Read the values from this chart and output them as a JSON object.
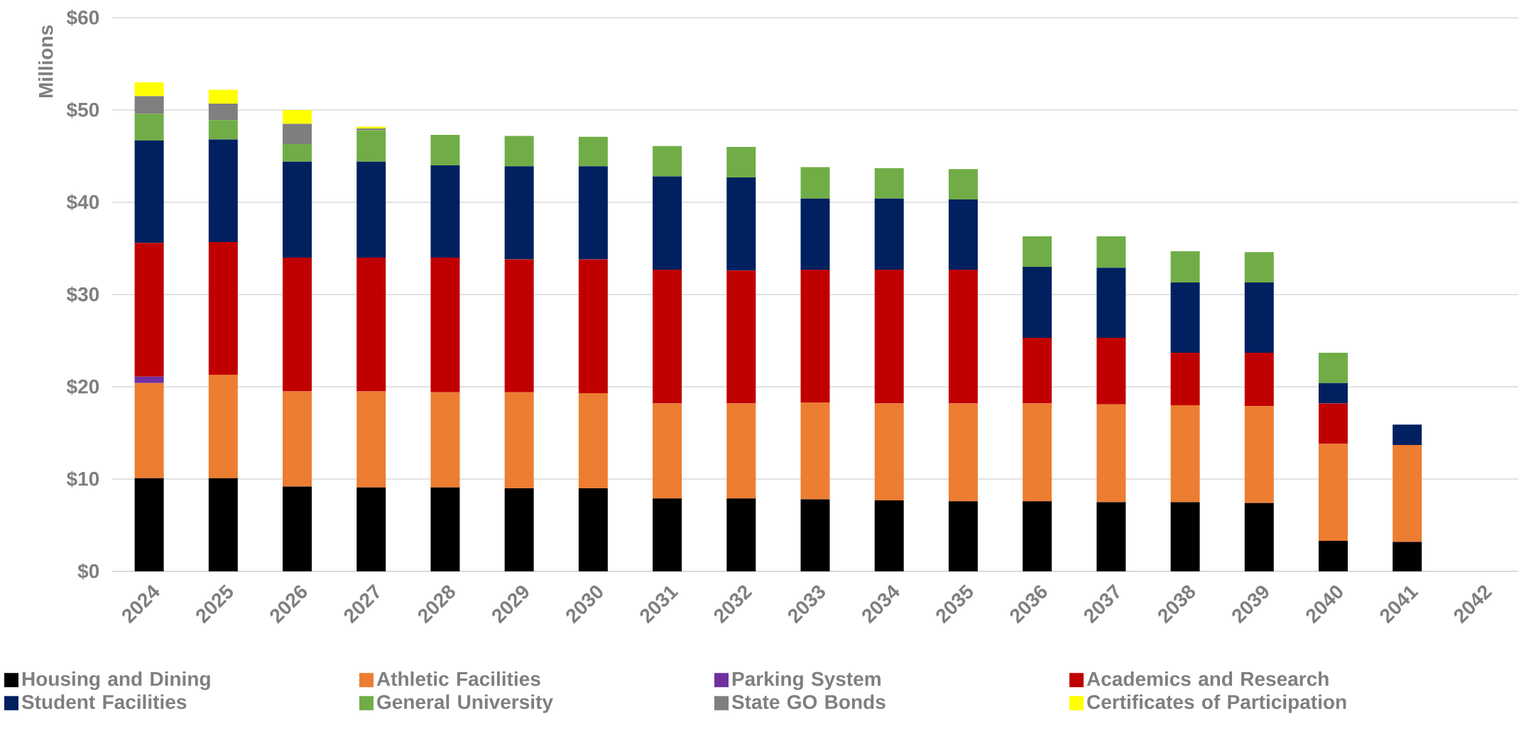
{
  "chart_data": {
    "type": "bar",
    "stacked": true,
    "ylabel": "Millions",
    "categories": [
      "2024",
      "2025",
      "2026",
      "2027",
      "2028",
      "2029",
      "2030",
      "2031",
      "2032",
      "2033",
      "2034",
      "2035",
      "2036",
      "2037",
      "2038",
      "2039",
      "2040",
      "2041",
      "2042"
    ],
    "series": [
      {
        "name": "Housing and Dining",
        "color": "#000000",
        "values": [
          10.1,
          10.1,
          9.2,
          9.1,
          9.1,
          9.0,
          9.0,
          7.9,
          7.9,
          7.8,
          7.7,
          7.6,
          7.6,
          7.5,
          7.5,
          7.4,
          3.3,
          3.2,
          0
        ]
      },
      {
        "name": "Athletic Facilities",
        "color": "#ed7d31",
        "values": [
          10.3,
          11.2,
          10.3,
          10.4,
          10.3,
          10.4,
          10.3,
          10.3,
          10.3,
          10.5,
          10.5,
          10.6,
          10.6,
          10.6,
          10.5,
          10.5,
          10.5,
          10.5,
          0
        ]
      },
      {
        "name": "Parking System",
        "color": "#7030a0",
        "values": [
          0.7,
          0,
          0,
          0,
          0,
          0,
          0,
          0,
          0,
          0,
          0,
          0,
          0,
          0,
          0,
          0,
          0,
          0,
          0
        ]
      },
      {
        "name": "Academics and Research",
        "color": "#c00000",
        "values": [
          14.5,
          14.4,
          14.5,
          14.5,
          14.6,
          14.4,
          14.5,
          14.5,
          14.4,
          14.4,
          14.5,
          14.5,
          7.1,
          7.2,
          5.7,
          5.8,
          4.4,
          0,
          0
        ]
      },
      {
        "name": "Student Facilities",
        "color": "#002060",
        "values": [
          11.1,
          11.1,
          10.4,
          10.4,
          10.0,
          10.1,
          10.1,
          10.1,
          10.1,
          7.7,
          7.7,
          7.6,
          7.7,
          7.6,
          7.6,
          7.6,
          2.2,
          2.2,
          0
        ]
      },
      {
        "name": "General University",
        "color": "#70ad47",
        "values": [
          2.9,
          2.1,
          1.9,
          3.4,
          3.3,
          3.3,
          3.2,
          3.3,
          3.3,
          3.4,
          3.3,
          3.3,
          3.3,
          3.4,
          3.4,
          3.3,
          3.3,
          0,
          0
        ]
      },
      {
        "name": "State GO Bonds",
        "color": "#7f7f7f",
        "values": [
          1.9,
          1.8,
          2.2,
          0.2,
          0,
          0,
          0,
          0,
          0,
          0,
          0,
          0,
          0,
          0,
          0,
          0,
          0,
          0,
          0
        ]
      },
      {
        "name": "Certificates of Participation",
        "color": "#ffff00",
        "values": [
          1.5,
          1.5,
          1.5,
          0.2,
          0,
          0,
          0,
          0,
          0,
          0,
          0,
          0,
          0,
          0,
          0,
          0,
          0,
          0,
          0
        ]
      }
    ],
    "ylim": [
      0,
      60
    ],
    "yticks": [
      {
        "value": 0,
        "label": "$0"
      },
      {
        "value": 10,
        "label": "$10"
      },
      {
        "value": 20,
        "label": "$20"
      },
      {
        "value": 30,
        "label": "$30"
      },
      {
        "value": 40,
        "label": "$40"
      },
      {
        "value": 50,
        "label": "$50"
      },
      {
        "value": 60,
        "label": "$60"
      }
    ],
    "grid": "y",
    "legend": "bottom"
  }
}
